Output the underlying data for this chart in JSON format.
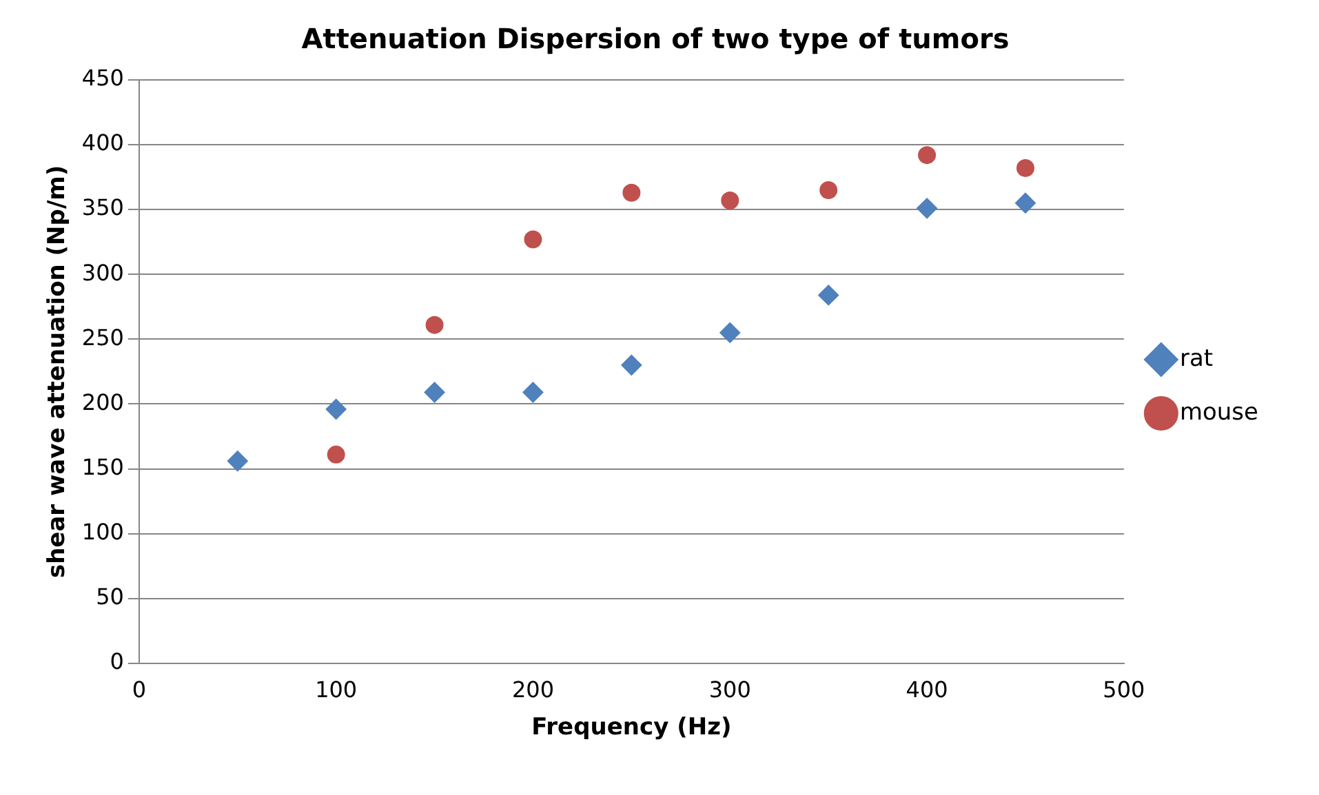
{
  "chart_data": {
    "type": "scatter",
    "title": "Attenuation Dispersion of two type of tumors",
    "xlabel": "Frequency (Hz)",
    "ylabel": "shear wave attenuation (Np/m)",
    "series": [
      {
        "name": "rat",
        "color": "#4f81bd",
        "marker": "diamond",
        "x": [
          50,
          100,
          150,
          200,
          250,
          300,
          350,
          400,
          450
        ],
        "values": [
          156,
          196,
          209,
          209,
          230,
          255,
          284,
          351,
          355
        ]
      },
      {
        "name": "mouse",
        "color": "#c0504d",
        "marker": "circle",
        "x": [
          100,
          150,
          200,
          250,
          300,
          350,
          400,
          450
        ],
        "values": [
          161,
          261,
          327,
          363,
          357,
          365,
          392,
          382
        ]
      }
    ],
    "xlim": [
      0,
      500
    ],
    "xticks": [
      0,
      100,
      200,
      300,
      400,
      500
    ],
    "ylim": [
      0,
      450
    ],
    "yticks": [
      0,
      50,
      100,
      150,
      200,
      250,
      300,
      350,
      400,
      450
    ],
    "grid": "y",
    "legend": "right"
  }
}
